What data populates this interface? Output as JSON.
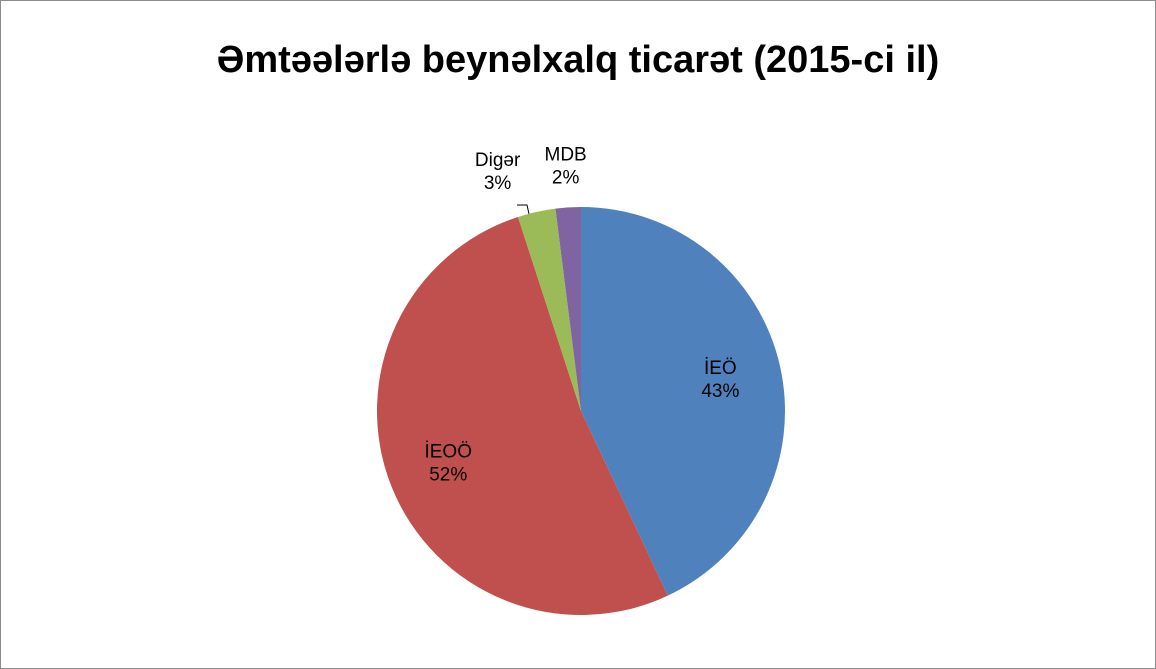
{
  "chart_data": {
    "type": "pie",
    "title": "Əmtəələrlə beynəlxalq ticarət (2015-ci il)",
    "categories": [
      "İEÖ",
      "İEOÖ",
      "Digər",
      "MDB"
    ],
    "values": [
      43,
      52,
      3,
      2
    ],
    "value_labels": [
      "43%",
      "52%",
      "3%",
      "2%"
    ],
    "colors": [
      "#4f81bd",
      "#c0504d",
      "#9bbb59",
      "#8064a2"
    ]
  }
}
